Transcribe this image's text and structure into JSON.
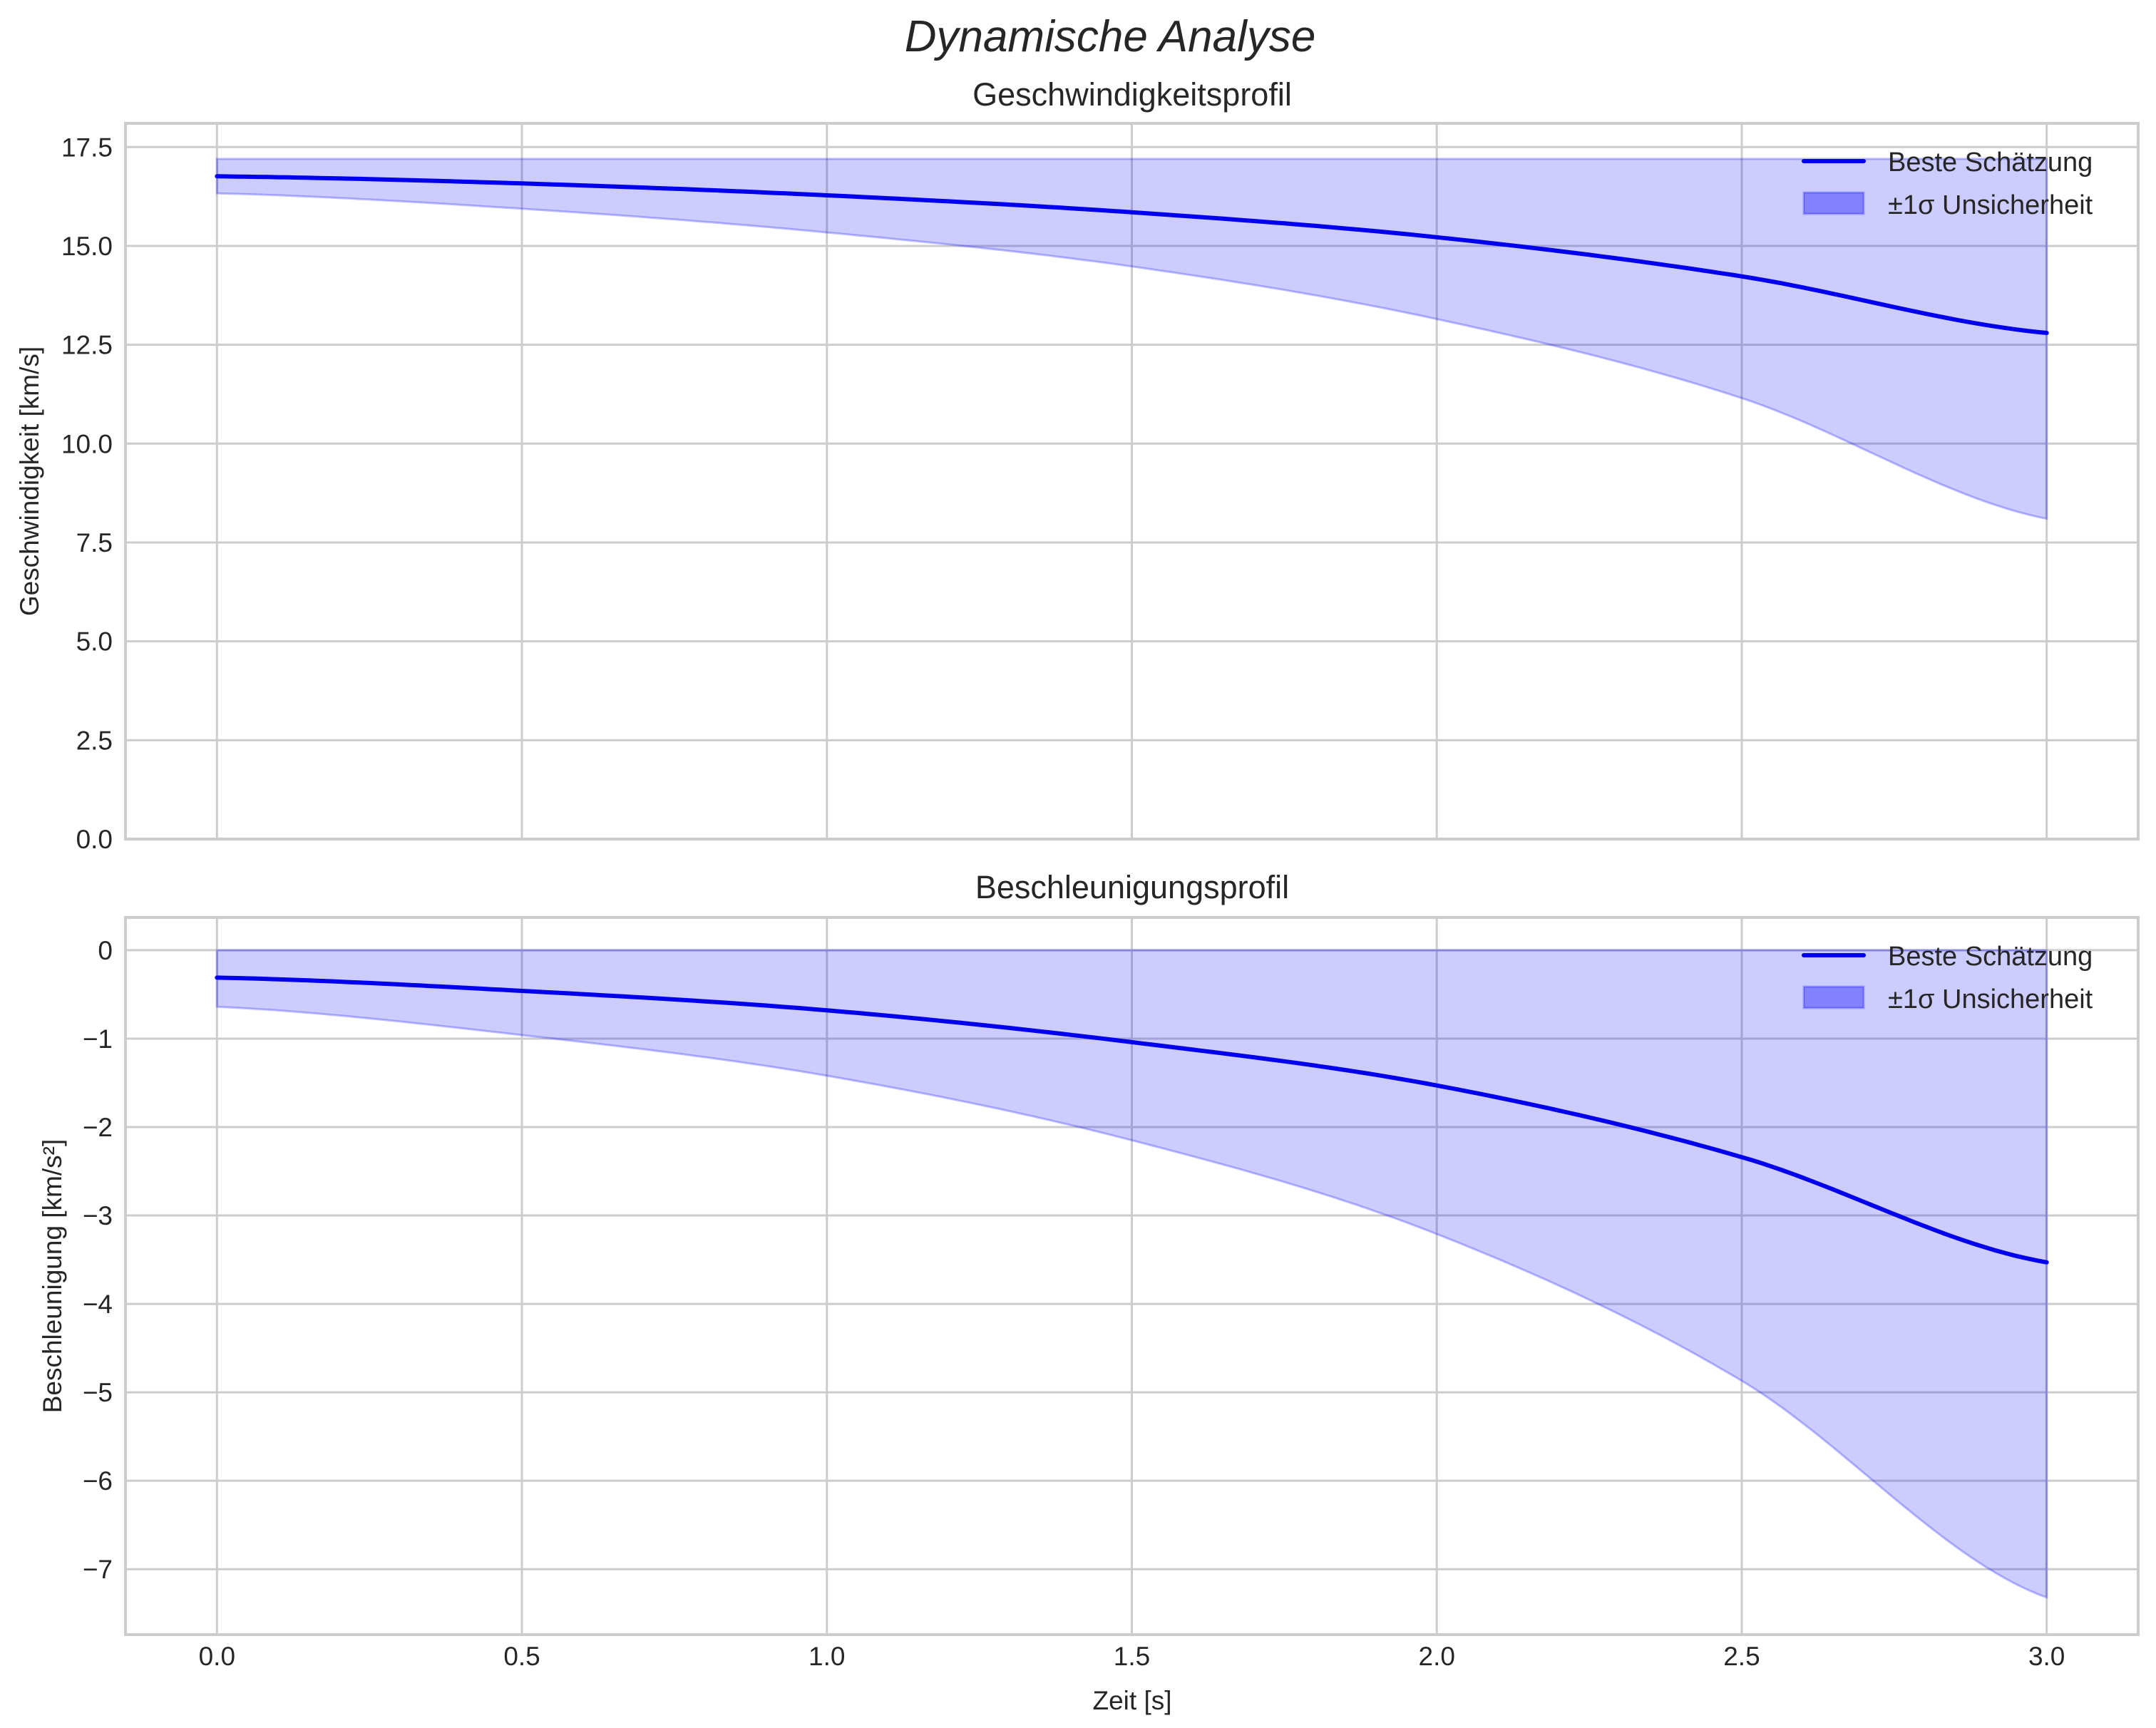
{
  "figure": {
    "title": "Dynamische Analyse",
    "xlabel": "Zeit [s]"
  },
  "colors": {
    "line": "#0000ee",
    "band_fill": "#ccccfa",
    "band_edge": "#9a9aee",
    "legend_patch": "#a3a3fb",
    "grid": "#cccccc",
    "text": "#262626"
  },
  "legend": {
    "line_label": "Beste Schätzung",
    "band_label": "±1σ Unsicherheit"
  },
  "chart_data": [
    {
      "type": "line",
      "title": "Geschwindigkeitsprofil",
      "xlabel": "",
      "ylabel": "Geschwindigkeit [km/s]",
      "xlim": [
        -0.15,
        3.15
      ],
      "ylim": [
        0.0,
        18.1
      ],
      "xticks": [
        "0.0",
        "0.5",
        "1.0",
        "1.5",
        "2.0",
        "2.5",
        "3.0"
      ],
      "yticks": [
        "0.0",
        "2.5",
        "5.0",
        "7.5",
        "10.0",
        "12.5",
        "15.0",
        "17.5"
      ],
      "grid": true,
      "legend_position": "upper right",
      "x": [
        0.0,
        0.5,
        1.0,
        1.5,
        2.0,
        2.5,
        3.0
      ],
      "series": [
        {
          "name": "Beste Schätzung",
          "values": [
            16.76,
            16.58,
            16.28,
            15.85,
            15.22,
            14.23,
            12.8
          ]
        },
        {
          "name": "±1σ Unsicherheit (unten)",
          "values": [
            16.33,
            15.94,
            15.34,
            14.48,
            13.15,
            11.15,
            8.1
          ]
        },
        {
          "name": "±1σ Unsicherheit (oben)",
          "values": [
            17.2,
            17.2,
            17.2,
            17.2,
            17.2,
            17.2,
            17.2
          ]
        }
      ]
    },
    {
      "type": "line",
      "title": "Beschleunigungsprofil",
      "xlabel": "Zeit [s]",
      "ylabel": "Beschleunigung [km/s²]",
      "xlim": [
        -0.15,
        3.15
      ],
      "ylim": [
        -7.74,
        0.37
      ],
      "xticks": [
        "0.0",
        "0.5",
        "1.0",
        "1.5",
        "2.0",
        "2.5",
        "3.0"
      ],
      "yticks": [
        "0",
        "−1",
        "−2",
        "−3",
        "−4",
        "−5",
        "−6",
        "−7"
      ],
      "grid": true,
      "legend_position": "upper right",
      "x": [
        0.0,
        0.5,
        1.0,
        1.5,
        2.0,
        2.5,
        3.0
      ],
      "series": [
        {
          "name": "Beste Schätzung",
          "values": [
            -0.31,
            -0.46,
            -0.68,
            -1.04,
            -1.53,
            -2.34,
            -3.53
          ]
        },
        {
          "name": "±1σ Unsicherheit (unten)",
          "values": [
            -0.64,
            -0.96,
            -1.42,
            -2.15,
            -3.21,
            -4.87,
            -7.32
          ]
        },
        {
          "name": "±1σ Unsicherheit (oben)",
          "values": [
            0.0,
            0.0,
            0.0,
            0.0,
            0.0,
            0.0,
            0.0
          ]
        }
      ]
    }
  ]
}
